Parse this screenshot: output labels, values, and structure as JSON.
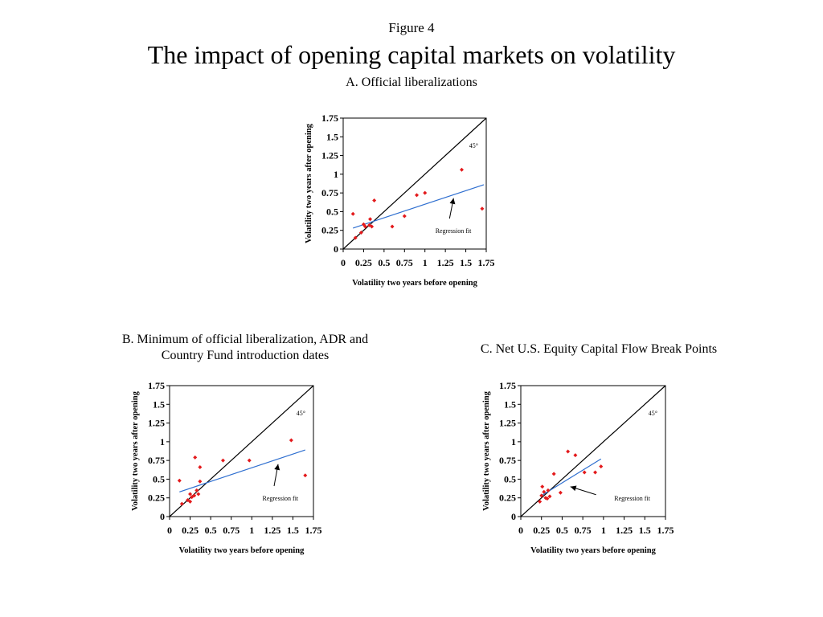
{
  "page": {
    "figure_label": "Figure 4",
    "title": "The impact of opening capital markets on volatility"
  },
  "chart_data": [
    {
      "type": "scatter",
      "panel_title": "A. Official liberalizations",
      "xlabel": "Volatility two years before opening",
      "ylabel": "Volatility two years after opening",
      "xlim": [
        0,
        1.75
      ],
      "ylim": [
        0,
        1.75
      ],
      "xticks": [
        "0",
        "0.25",
        "0.5",
        "0.75",
        "1",
        "1.25",
        "1.5",
        "1.75"
      ],
      "yticks": [
        "0",
        "0.25",
        "0.5",
        "0.75",
        "1",
        "1.25",
        "1.5",
        "1.75"
      ],
      "reference_line": {
        "label": "45°",
        "from": [
          0,
          0
        ],
        "to": [
          1.75,
          1.75
        ]
      },
      "regression_fit": {
        "label": "Regression fit",
        "from": [
          0.12,
          0.28
        ],
        "to": [
          1.72,
          0.86
        ],
        "arrow_to": [
          1.35,
          0.68
        ]
      },
      "series": [
        {
          "color": "#e31a1c",
          "points": [
            [
              0.12,
              0.47
            ],
            [
              0.15,
              0.15
            ],
            [
              0.22,
              0.22
            ],
            [
              0.25,
              0.33
            ],
            [
              0.27,
              0.3
            ],
            [
              0.32,
              0.32
            ],
            [
              0.33,
              0.4
            ],
            [
              0.35,
              0.3
            ],
            [
              0.38,
              0.65
            ],
            [
              0.6,
              0.3
            ],
            [
              0.75,
              0.44
            ],
            [
              0.9,
              0.72
            ],
            [
              1.0,
              0.75
            ],
            [
              1.45,
              1.06
            ],
            [
              1.7,
              0.54
            ]
          ]
        }
      ]
    },
    {
      "type": "scatter",
      "panel_title": "B. Minimum of official liberalization, ADR and Country Fund introduction dates",
      "xlabel": "Volatility two years before opening",
      "ylabel": "Volatility two years after opening",
      "xlim": [
        0,
        1.75
      ],
      "ylim": [
        0,
        1.75
      ],
      "xticks": [
        "0",
        "0.25",
        "0.5",
        "0.75",
        "1",
        "1.25",
        "1.5",
        "1.75"
      ],
      "yticks": [
        "0",
        "0.25",
        "0.5",
        "0.75",
        "1",
        "1.25",
        "1.5",
        "1.75"
      ],
      "reference_line": {
        "label": "45°",
        "from": [
          0,
          0
        ],
        "to": [
          1.75,
          1.75
        ]
      },
      "regression_fit": {
        "label": "Regression fit",
        "from": [
          0.12,
          0.33
        ],
        "to": [
          1.65,
          0.89
        ],
        "arrow_to": [
          1.32,
          0.7
        ]
      },
      "series": [
        {
          "color": "#e31a1c",
          "points": [
            [
              0.12,
              0.48
            ],
            [
              0.15,
              0.17
            ],
            [
              0.22,
              0.22
            ],
            [
              0.25,
              0.3
            ],
            [
              0.25,
              0.2
            ],
            [
              0.27,
              0.26
            ],
            [
              0.3,
              0.28
            ],
            [
              0.31,
              0.79
            ],
            [
              0.33,
              0.35
            ],
            [
              0.35,
              0.3
            ],
            [
              0.37,
              0.66
            ],
            [
              0.37,
              0.47
            ],
            [
              0.65,
              0.75
            ],
            [
              0.97,
              0.75
            ],
            [
              1.48,
              1.02
            ],
            [
              1.65,
              0.55
            ]
          ]
        }
      ]
    },
    {
      "type": "scatter",
      "panel_title": "C. Net U.S. Equity Capital Flow Break Points",
      "xlabel": "Volatility two years before opening",
      "ylabel": "Volatility two years after opening",
      "xlim": [
        0,
        1.75
      ],
      "ylim": [
        0,
        1.75
      ],
      "xticks": [
        "0",
        "0.25",
        "0.5",
        "0.75",
        "1",
        "1.25",
        "1.5",
        "1.75"
      ],
      "yticks": [
        "0",
        "0.25",
        "0.5",
        "0.75",
        "1",
        "1.25",
        "1.5",
        "1.75"
      ],
      "reference_line": {
        "label": "45°",
        "from": [
          0,
          0
        ],
        "to": [
          1.75,
          1.75
        ]
      },
      "regression_fit": {
        "label": "Regression fit",
        "from": [
          0.25,
          0.28
        ],
        "to": [
          0.97,
          0.77
        ],
        "arrow_to": [
          0.6,
          0.4
        ]
      },
      "series": [
        {
          "color": "#e31a1c",
          "points": [
            [
              0.23,
              0.2
            ],
            [
              0.25,
              0.28
            ],
            [
              0.26,
              0.4
            ],
            [
              0.28,
              0.33
            ],
            [
              0.3,
              0.25
            ],
            [
              0.32,
              0.24
            ],
            [
              0.33,
              0.35
            ],
            [
              0.35,
              0.27
            ],
            [
              0.4,
              0.57
            ],
            [
              0.48,
              0.32
            ],
            [
              0.57,
              0.87
            ],
            [
              0.66,
              0.82
            ],
            [
              0.77,
              0.59
            ],
            [
              0.9,
              0.59
            ],
            [
              0.97,
              0.67
            ]
          ]
        }
      ]
    }
  ]
}
